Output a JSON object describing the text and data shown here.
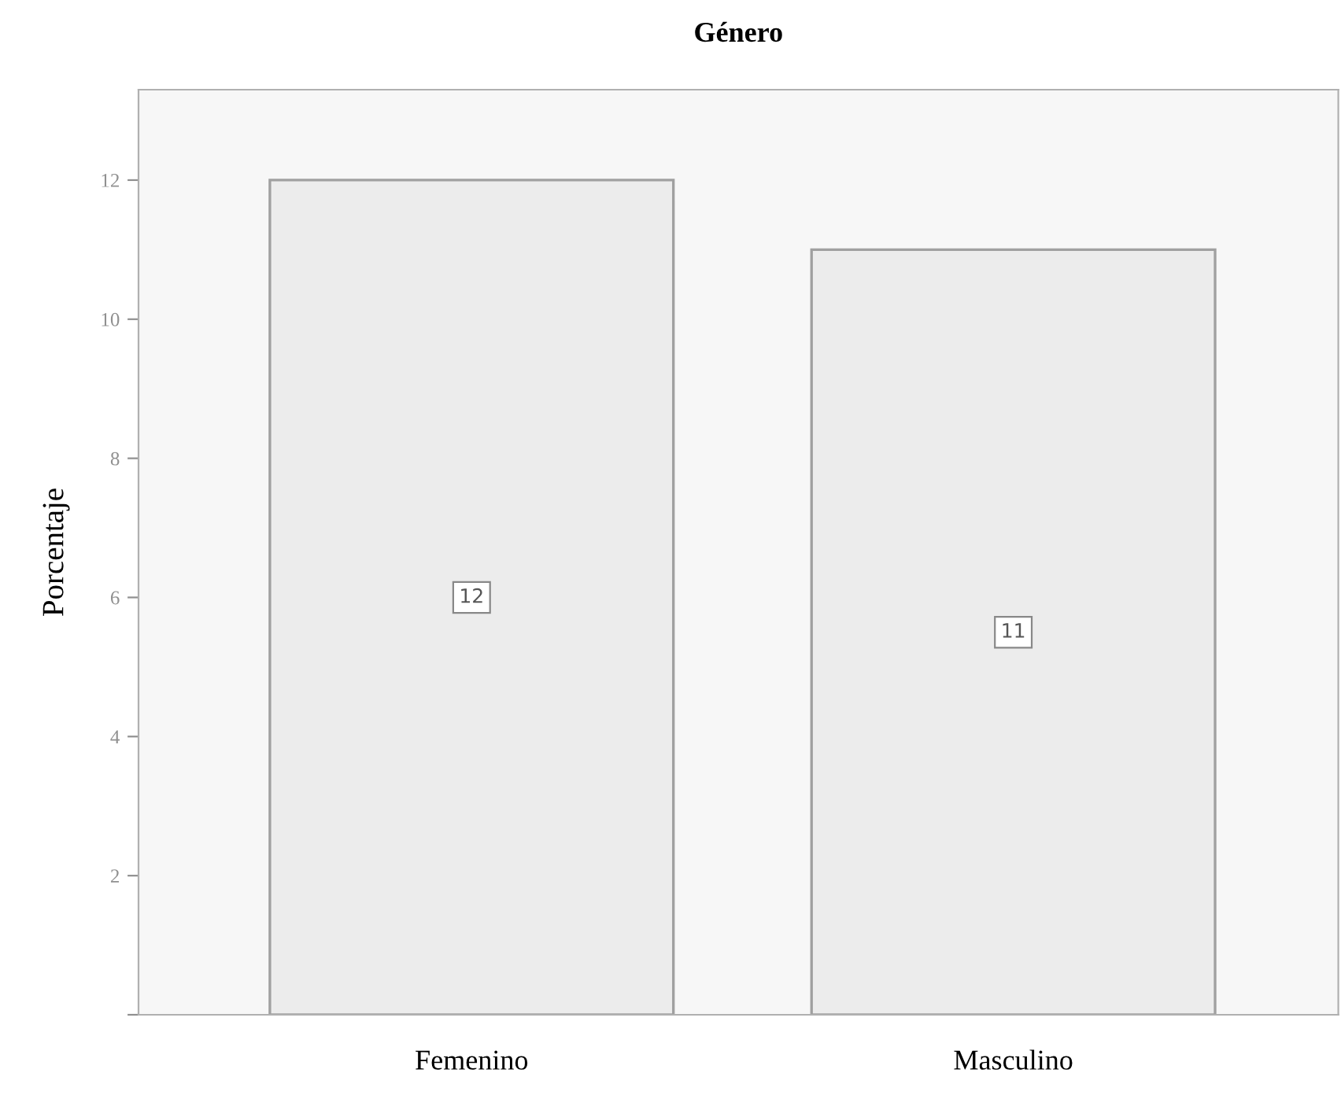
{
  "chart_data": {
    "type": "bar",
    "title": "Género",
    "ylabel": "Porcentaje",
    "categories": [
      "Femenino",
      "Masculino"
    ],
    "values": [
      12,
      11
    ],
    "color": "#ececec",
    "ylim": [
      0,
      13.3
    ],
    "yticks": [
      {
        "value": 0,
        "label": null
      },
      2,
      4,
      6,
      8,
      10,
      12
    ],
    "data_labels": true,
    "grid": false,
    "legend": false
  }
}
